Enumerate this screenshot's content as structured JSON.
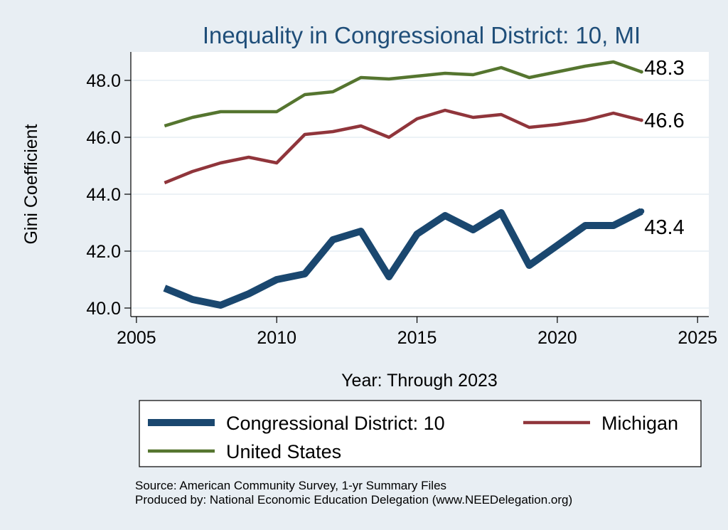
{
  "chart_data": {
    "type": "line",
    "title": "Inequality in Congressional District:  10, MI",
    "xlabel": "Year: Through 2023",
    "ylabel": "Gini Coefficient",
    "xlim": [
      2004.8,
      2025.4
    ],
    "ylim": [
      39.7,
      49.0
    ],
    "xticks": [
      2005,
      2010,
      2015,
      2020,
      2025
    ],
    "yticks": [
      40.0,
      42.0,
      44.0,
      46.0,
      48.0
    ],
    "ytick_labels": [
      "40.0",
      "42.0",
      "44.0",
      "46.0",
      "48.0"
    ],
    "grid": true,
    "legend_position": "bottom",
    "series": [
      {
        "name": "Congressional District:  10",
        "color": "#1a476f",
        "x": [
          2006,
          2007,
          2008,
          2009,
          2010,
          2011,
          2012,
          2013,
          2014,
          2015,
          2016,
          2017,
          2018,
          2019,
          2020,
          2021,
          2022,
          2023
        ],
        "y": [
          40.7,
          40.3,
          40.1,
          40.5,
          41.0,
          41.2,
          42.4,
          42.7,
          41.1,
          42.6,
          43.25,
          42.75,
          43.35,
          41.5,
          42.2,
          42.9,
          42.9,
          43.4
        ],
        "end_label": "43.4"
      },
      {
        "name": "Michigan",
        "color": "#90353b",
        "x": [
          2006,
          2007,
          2008,
          2009,
          2010,
          2011,
          2012,
          2013,
          2014,
          2015,
          2016,
          2017,
          2018,
          2019,
          2020,
          2021,
          2022,
          2023
        ],
        "y": [
          44.4,
          44.8,
          45.1,
          45.3,
          45.1,
          46.1,
          46.2,
          46.4,
          46.0,
          46.65,
          46.95,
          46.7,
          46.8,
          46.35,
          46.45,
          46.6,
          46.85,
          46.6
        ],
        "end_label": "46.6"
      },
      {
        "name": "United States",
        "color": "#55752f",
        "x": [
          2006,
          2007,
          2008,
          2009,
          2010,
          2011,
          2012,
          2013,
          2014,
          2015,
          2016,
          2017,
          2018,
          2019,
          2020,
          2021,
          2022,
          2023
        ],
        "y": [
          46.4,
          46.7,
          46.9,
          46.9,
          46.9,
          47.5,
          47.6,
          48.1,
          48.05,
          48.15,
          48.25,
          48.2,
          48.45,
          48.1,
          48.3,
          48.5,
          48.65,
          48.3
        ],
        "end_label": "48.3"
      }
    ],
    "notes": [
      "Source: American Community Survey, 1-yr Summary Files",
      "Produced by: National Economic Education Delegation (www.NEEDelegation.org)"
    ]
  }
}
